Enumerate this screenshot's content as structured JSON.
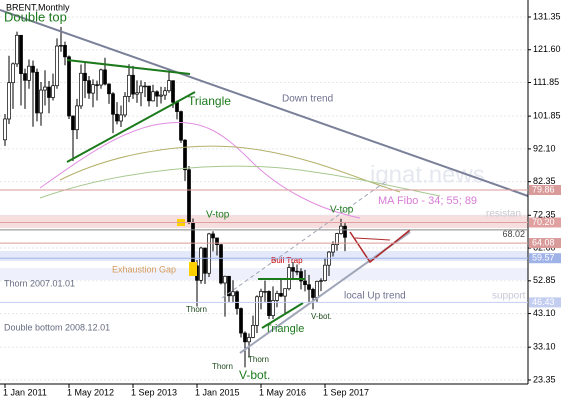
{
  "chart_data": {
    "type": "candlestick",
    "title": "BRENT,Monthly",
    "x": [
      "2011-01",
      "2011-02",
      "2011-03",
      "2011-04",
      "2011-05",
      "2011-06",
      "2011-07",
      "2011-08",
      "2011-09",
      "2011-10",
      "2011-11",
      "2011-12",
      "2012-01",
      "2012-02",
      "2012-03",
      "2012-04",
      "2012-05",
      "2012-06",
      "2012-07",
      "2012-08",
      "2012-09",
      "2012-10",
      "2012-11",
      "2012-12",
      "2013-01",
      "2013-02",
      "2013-03",
      "2013-04",
      "2013-05",
      "2013-06",
      "2013-07",
      "2013-08",
      "2013-09",
      "2013-10",
      "2013-11",
      "2013-12",
      "2014-01",
      "2014-02",
      "2014-03",
      "2014-04",
      "2014-05",
      "2014-06",
      "2014-07",
      "2014-08",
      "2014-09",
      "2014-10",
      "2014-11",
      "2014-12",
      "2015-01",
      "2015-02",
      "2015-03",
      "2015-04",
      "2015-05",
      "2015-06",
      "2015-07",
      "2015-08",
      "2015-09",
      "2015-10",
      "2015-11",
      "2015-12",
      "2016-01",
      "2016-02",
      "2016-03",
      "2016-04",
      "2016-05",
      "2016-06",
      "2016-07",
      "2016-08",
      "2016-09",
      "2016-10",
      "2016-11",
      "2016-12",
      "2017-01",
      "2017-02",
      "2017-03",
      "2017-04",
      "2017-05",
      "2017-06",
      "2017-07",
      "2017-08",
      "2017-09",
      "2017-10",
      "2017-11",
      "2017-12",
      "2018-01",
      "2018-02"
    ],
    "open": [
      94.8,
      101.0,
      111.8,
      117.4,
      125.9,
      114.5,
      112.5,
      116.7,
      114.9,
      102.8,
      109.6,
      110.5,
      107.4,
      110.9,
      122.7,
      122.9,
      119.5,
      101.9,
      97.8,
      104.9,
      114.6,
      112.4,
      108.7,
      111.2,
      111.1,
      115.6,
      111.4,
      108.5,
      102.4,
      100.4,
      102.2,
      107.7,
      114.0,
      108.4,
      108.8,
      110.8,
      110.8,
      106.4,
      109.1,
      107.8,
      108.1,
      109.4,
      112.4,
      106.0,
      103.2,
      94.7,
      85.9,
      70.2,
      57.3,
      53.0,
      62.6,
      55.1,
      66.8,
      65.6,
      63.6,
      52.2,
      54.2,
      48.4,
      49.6,
      44.6,
      37.3,
      34.7,
      36.0,
      39.6,
      48.1,
      49.7,
      49.7,
      42.5,
      47.0,
      49.1,
      48.3,
      50.5,
      56.8,
      55.7,
      55.6,
      52.8,
      51.7,
      50.3,
      47.9,
      52.7,
      52.9,
      57.5,
      61.4,
      63.6,
      66.9,
      69.1
    ],
    "high": [
      102.5,
      119.8,
      117.8,
      127.0,
      126.0,
      116.0,
      118.7,
      118.4,
      116.0,
      112.0,
      115.5,
      112.3,
      114.5,
      125.0,
      128.4,
      124.0,
      119.9,
      102.0,
      107.0,
      117.2,
      117.9,
      113.8,
      112.8,
      112.4,
      116.0,
      119.2,
      111.6,
      109.0,
      106.0,
      105.0,
      109.0,
      117.3,
      116.8,
      112.5,
      112.5,
      112.0,
      110.5,
      111.2,
      109.5,
      110.6,
      110.5,
      115.7,
      112.0,
      106.5,
      103.5,
      95.0,
      87.0,
      71.4,
      59.0,
      63.0,
      62.7,
      67.1,
      67.6,
      65.1,
      63.8,
      54.4,
      54.2,
      53.0,
      50.0,
      44.9,
      37.8,
      37.2,
      42.5,
      48.5,
      50.5,
      52.9,
      50.0,
      51.2,
      49.9,
      53.7,
      50.6,
      57.9,
      58.4,
      57.7,
      56.6,
      56.1,
      54.6,
      50.8,
      52.9,
      53.6,
      59.5,
      61.7,
      64.6,
      67.1,
      71.3,
      70.0
    ],
    "low": [
      93.0,
      99.5,
      104.0,
      116.5,
      105.0,
      104.0,
      110.0,
      98.7,
      100.3,
      99.0,
      105.0,
      102.7,
      106.5,
      110.0,
      121.0,
      117.0,
      101.0,
      88.5,
      95.0,
      104.0,
      107.2,
      107.0,
      104.5,
      106.5,
      110.0,
      111.0,
      105.5,
      96.8,
      99.4,
      98.6,
      101.5,
      106.0,
      107.0,
      105.8,
      104.8,
      107.5,
      104.7,
      106.2,
      104.6,
      105.6,
      106.7,
      108.8,
      104.3,
      100.9,
      93.9,
      82.6,
      69.7,
      56.5,
      45.2,
      52.0,
      51.9,
      54.0,
      61.6,
      60.4,
      51.8,
      42.2,
      46.6,
      46.3,
      42.8,
      36.0,
      27.1,
      30.0,
      35.8,
      37.3,
      44.4,
      46.6,
      41.5,
      41.5,
      45.0,
      48.0,
      43.1,
      50.0,
      53.6,
      54.5,
      50.3,
      49.7,
      46.6,
      44.4,
      46.6,
      49.8,
      52.6,
      54.3,
      60.1,
      61.8,
      66.6,
      61.7
    ],
    "close": [
      101.0,
      111.8,
      117.4,
      125.9,
      114.5,
      112.5,
      116.7,
      114.9,
      102.8,
      109.6,
      110.5,
      107.4,
      110.9,
      122.7,
      122.9,
      119.5,
      101.9,
      97.8,
      104.9,
      114.6,
      112.4,
      108.7,
      111.2,
      111.1,
      115.6,
      111.4,
      108.5,
      102.4,
      100.4,
      102.2,
      107.7,
      114.0,
      108.4,
      108.8,
      110.8,
      110.8,
      106.4,
      109.1,
      107.8,
      108.1,
      109.4,
      112.4,
      106.0,
      103.2,
      94.7,
      85.9,
      70.2,
      57.3,
      53.0,
      62.6,
      55.1,
      66.8,
      65.6,
      63.6,
      52.2,
      54.2,
      48.4,
      49.6,
      44.6,
      37.3,
      34.7,
      36.0,
      39.6,
      48.1,
      49.7,
      49.7,
      42.5,
      47.0,
      49.1,
      48.3,
      50.5,
      56.8,
      55.7,
      55.6,
      52.8,
      51.7,
      50.3,
      47.9,
      52.7,
      52.9,
      57.5,
      61.4,
      63.6,
      66.9,
      69.1,
      65.8
    ],
    "ylim": [
      22.15,
      136.4
    ],
    "yticks": [
      131.35,
      {
        "value": 121.6,
        "label": "121.60"
      },
      111.85,
      101.85,
      {
        "value": 92.1,
        "label": "92.10"
      },
      82.35,
      72.35,
      {
        "value": 62.6,
        "label": "62.60"
      },
      52.85,
      {
        "value": 43.1,
        "label": "43.10"
      },
      {
        "value": 33.1,
        "label": "33.10"
      },
      23.35
    ],
    "xticks": [
      {
        "value": "2011-01",
        "label": "1 Jan 2011"
      },
      {
        "value": "2012-05",
        "label": "1 May 2012"
      },
      {
        "value": "2013-09",
        "label": "1 Sep 2013"
      },
      {
        "value": "2015-01",
        "label": "1 Jan 2015"
      },
      {
        "value": "2016-05",
        "label": "1 May 2016"
      },
      {
        "value": "2017-09",
        "label": "1 Sep 2017"
      }
    ],
    "levels": [
      {
        "value": 79.86,
        "color": "#d99a9a"
      },
      {
        "value": 70.2,
        "label": "70.20",
        "color": "#e0a0a0"
      },
      {
        "value": 68.02,
        "color": "#888888",
        "box": false
      },
      {
        "value": 64.08,
        "color": "#d99a9a"
      },
      {
        "value": 59.57,
        "color": "#9fb3e8"
      },
      {
        "value": 46.43,
        "color": "#c3cdf0"
      }
    ],
    "grid": true,
    "bull_color": "#ffffff",
    "bear_color": "#000000",
    "annotations": [
      "Double top",
      "Triangle",
      "Down trend",
      "ignat.news",
      "MA Fibo - 34; 55; 89",
      "resistan",
      "V-top",
      "V-top",
      "Exhaustion Gap",
      "Bull Trap",
      "Thorn 2007.01.01",
      "Double bottom 2008.12.01",
      "local Up trend",
      "support",
      "Thorn",
      "Thorn",
      "Thorn",
      "V-bot.",
      "V-bot.",
      "Triangle"
    ]
  }
}
